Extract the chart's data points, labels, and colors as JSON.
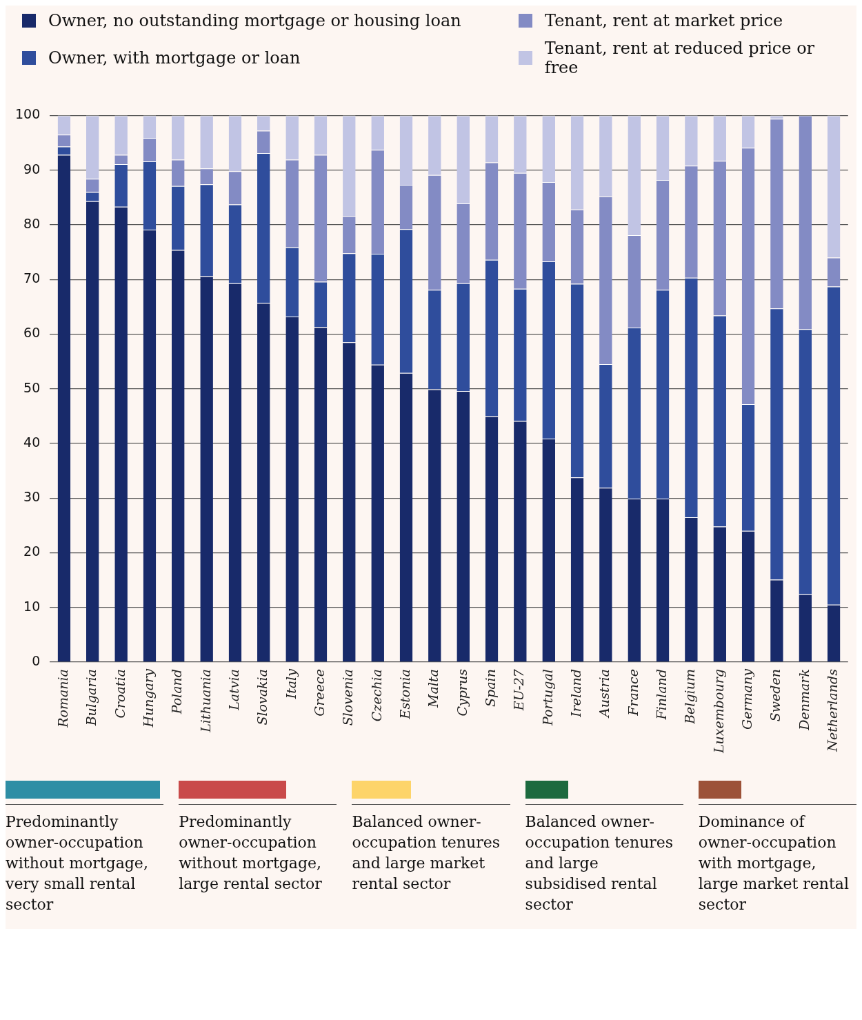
{
  "chart_data": {
    "type": "bar",
    "stacked": true,
    "grid": "y",
    "legend": "top",
    "categories": [
      "Romania",
      "Bulgaria",
      "Croatia",
      "Hungary",
      "Poland",
      "Lithuania",
      "Latvia",
      "Slovakia",
      "Italy",
      "Greece",
      "Slovenia",
      "Czechia",
      "Estonia",
      "Malta",
      "Cyprus",
      "Spain",
      "EU-27",
      "Portugal",
      "Ireland",
      "Austria",
      "France",
      "Finland",
      "Belgium",
      "Luxembourg",
      "Germany",
      "Sweden",
      "Denmark",
      "Netherlands"
    ],
    "ylim": [
      0,
      100
    ],
    "yticks": [
      0,
      10,
      20,
      30,
      40,
      50,
      60,
      70,
      80,
      90,
      100
    ],
    "series": [
      {
        "name": "Owner, no outstanding mortgage or housing loan",
        "color": "#182a6a",
        "values": [
          92.8,
          84.3,
          83.3,
          79.1,
          75.4,
          70.6,
          69.3,
          65.7,
          63.2,
          61.3,
          58.5,
          54.4,
          52.9,
          49.9,
          49.6,
          45.0,
          44.1,
          40.9,
          33.8,
          31.9,
          29.9,
          29.9,
          26.5,
          24.8,
          24.0,
          15.1,
          12.4,
          10.5
        ]
      },
      {
        "name": "Owner, with mortgage or loan",
        "color": "#2f4d9c",
        "values": [
          1.5,
          1.7,
          7.8,
          12.5,
          11.7,
          16.8,
          14.4,
          27.4,
          12.7,
          8.3,
          16.3,
          20.3,
          26.3,
          18.2,
          19.7,
          28.6,
          24.2,
          32.4,
          35.4,
          22.6,
          31.3,
          38.2,
          43.8,
          38.6,
          23.2,
          49.6,
          48.5,
          58.2
        ]
      },
      {
        "name": "Tenant, rent at market price",
        "color": "#838bc4",
        "values": [
          2.2,
          2.4,
          1.7,
          4.3,
          4.8,
          2.9,
          6.1,
          4.1,
          16.0,
          23.2,
          6.8,
          19.0,
          8.1,
          21.0,
          14.6,
          17.8,
          21.2,
          14.5,
          13.6,
          30.7,
          16.9,
          20.1,
          20.5,
          28.3,
          46.9,
          34.7,
          39.1,
          5.3
        ]
      },
      {
        "name": "Tenant, rent at reduced price or free",
        "color": "#c1c4e4",
        "values": [
          3.5,
          11.6,
          7.2,
          4.1,
          8.1,
          9.7,
          10.2,
          2.8,
          8.1,
          7.2,
          18.4,
          6.3,
          12.7,
          10.9,
          16.1,
          8.6,
          10.5,
          12.2,
          17.2,
          14.8,
          21.9,
          11.8,
          9.2,
          8.3,
          5.9,
          0.6,
          0.0,
          26.0
        ]
      }
    ],
    "annotations": [
      "Predominantly owner-occupation without mortgage, very small rental sector",
      "Predominantly owner-occupation without mortgage, large rental sector",
      "Balanced owner-occupation tenures and large market rental sector",
      "Balanced owner-occupation tenures and large subsidised rental sector",
      "Dominance of owner-occupation with mortgage, large market rental sector"
    ]
  }
}
